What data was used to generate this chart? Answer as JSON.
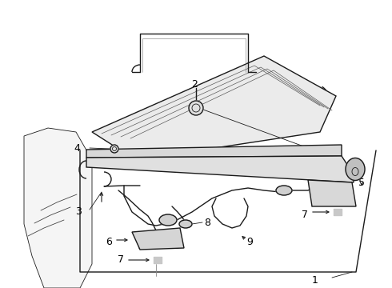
{
  "bg_color": "#ffffff",
  "line_color": "#1a1a1a",
  "text_color": "#000000",
  "lw": 1.0,
  "lw_thin": 0.6,
  "lw_thick": 1.4,
  "figsize": [
    4.9,
    3.6
  ],
  "dpi": 100
}
